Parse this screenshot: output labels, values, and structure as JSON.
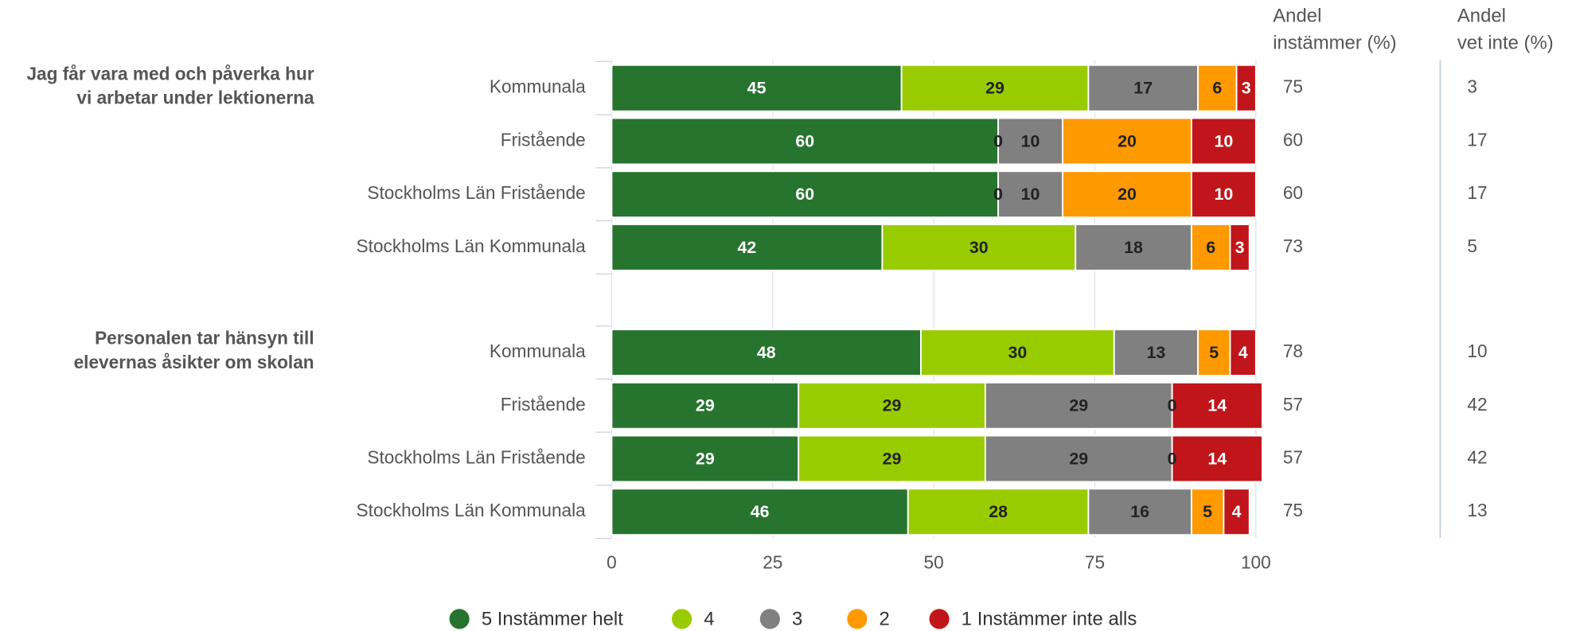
{
  "chart_data": {
    "type": "bar",
    "orientation": "horizontal",
    "stacked": true,
    "groups": [
      {
        "label_lines": [
          "Jag får vara med och påverka hur",
          "vi arbetar under lektionerna"
        ],
        "categories": [
          "Kommunala",
          "Fristående",
          "Stockholms Län Fristående",
          "Stockholms Län Kommunala"
        ]
      },
      {
        "label_lines": [
          "Personalen tar hänsyn till",
          "elevernas åsikter om skolan"
        ],
        "categories": [
          "Kommunala",
          "Fristående",
          "Stockholms Län Fristående",
          "Stockholms Län Kommunala"
        ]
      }
    ],
    "series": [
      {
        "name": "5 Instämmer helt",
        "color": "#27742f",
        "label_color": "#ffffff",
        "values": [
          45,
          60,
          60,
          42,
          48,
          29,
          29,
          46
        ]
      },
      {
        "name": "4",
        "color": "#99cc00",
        "label_color": "#222222",
        "values": [
          29,
          0,
          0,
          30,
          30,
          29,
          29,
          28
        ]
      },
      {
        "name": "3",
        "color": "#808080",
        "label_color": "#222222",
        "values": [
          17,
          10,
          10,
          18,
          13,
          29,
          29,
          16
        ]
      },
      {
        "name": "2",
        "color": "#ff9900",
        "label_color": "#222222",
        "values": [
          6,
          20,
          20,
          6,
          5,
          0,
          0,
          5
        ]
      },
      {
        "name": "1 Instämmer inte alls",
        "color": "#c0161b",
        "label_color": "#ffffff",
        "values": [
          3,
          10,
          10,
          3,
          4,
          14,
          14,
          4
        ]
      }
    ],
    "xlim": [
      0,
      100
    ],
    "xticks": [
      0,
      25,
      50,
      75,
      100
    ],
    "grid": true,
    "legend": "bottom",
    "columns": [
      {
        "title_lines": [
          "Andel",
          "instämmer (%)"
        ],
        "values": [
          75,
          60,
          60,
          73,
          78,
          57,
          57,
          75
        ]
      },
      {
        "title_lines": [
          "Andel",
          "vet inte (%)"
        ],
        "values": [
          3,
          17,
          17,
          5,
          10,
          42,
          42,
          13
        ]
      }
    ]
  }
}
